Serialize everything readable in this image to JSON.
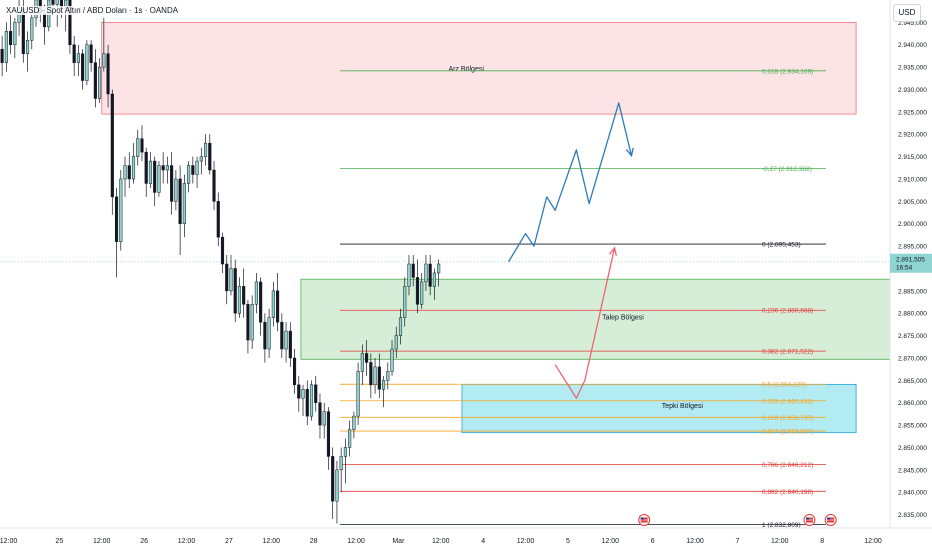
{
  "header": {
    "symbol_title": "XAUUSD · Spot Altın / ABD Doları · 1s · OANDA",
    "currency": "USD"
  },
  "colors": {
    "up": "#8fd4d0",
    "down": "#131722",
    "supply_fill": "#fbe3e6",
    "supply_border": "#f0737d",
    "demand_fill": "#d6eed8",
    "demand_border": "#4caf50",
    "reaction_fill": "#b2ebf2",
    "reaction_border": "#26a3d9",
    "arrow_blue": "#2e7ab8",
    "arrow_red": "#f0636e",
    "price_badge": "#8fd4d0"
  },
  "chart_data": {
    "type": "candlestick",
    "instrument": "XAUUSD",
    "timeframe": "1s",
    "ylim": [
      2832.0,
      2950.0
    ],
    "yticks": [
      2835.0,
      2840.0,
      2845.0,
      2850.0,
      2855.0,
      2860.0,
      2865.0,
      2870.0,
      2875.0,
      2880.0,
      2885.0,
      2890.0,
      2895.0,
      2900.0,
      2905.0,
      2910.0,
      2915.0,
      2920.0,
      2925.0,
      2930.0,
      2935.0,
      2940.0,
      2945.0
    ],
    "ytick_labels": [
      "2.835,000",
      "2.840,000",
      "2.845,000",
      "2.850,000",
      "2.855,000",
      "2.860,000",
      "2.865,000",
      "2.870,000",
      "2.875,000",
      "2.880,000",
      "2.885,000",
      "2.890,000",
      "2.895,000",
      "2.900,000",
      "2.905,000",
      "2.910,000",
      "2.915,000",
      "2.920,000",
      "2.925,000",
      "2.930,000",
      "2.935,000",
      "2.940,000",
      "2.945,000"
    ],
    "xlim": [
      0,
      210
    ],
    "xticks": [
      {
        "t": 2,
        "label": "12:00"
      },
      {
        "t": 14,
        "label": "25"
      },
      {
        "t": 24,
        "label": "12:00"
      },
      {
        "t": 34,
        "label": "26"
      },
      {
        "t": 44,
        "label": "12:00"
      },
      {
        "t": 54,
        "label": "27"
      },
      {
        "t": 64,
        "label": "12:00"
      },
      {
        "t": 74,
        "label": "28"
      },
      {
        "t": 84,
        "label": "12:00"
      },
      {
        "t": 94,
        "label": "Mar"
      },
      {
        "t": 104,
        "label": "12:00"
      },
      {
        "t": 114,
        "label": "4"
      },
      {
        "t": 124,
        "label": "12:00"
      },
      {
        "t": 134,
        "label": "5"
      },
      {
        "t": 144,
        "label": "12:00"
      },
      {
        "t": 154,
        "label": "6"
      },
      {
        "t": 164,
        "label": "12:00"
      },
      {
        "t": 174,
        "label": "7"
      },
      {
        "t": 184,
        "label": "12:00"
      },
      {
        "t": 194,
        "label": "8"
      },
      {
        "t": 206,
        "label": "12:00"
      }
    ],
    "current_price": {
      "label": "2.891,505",
      "countdown": "16:54",
      "value": 2891.505
    },
    "candles": [
      [
        2939,
        2942,
        2933,
        2936
      ],
      [
        2936,
        2945,
        2934,
        2943
      ],
      [
        2943,
        2947,
        2938,
        2940
      ],
      [
        2940,
        2946,
        2937,
        2945
      ],
      [
        2945,
        2951,
        2942,
        2948
      ],
      [
        2948,
        2950,
        2936,
        2938
      ],
      [
        2938,
        2943,
        2934,
        2941
      ],
      [
        2941,
        2948,
        2939,
        2946
      ],
      [
        2946,
        2952,
        2944,
        2950
      ],
      [
        2950,
        2953,
        2945,
        2947
      ],
      [
        2947,
        2949,
        2940,
        2944
      ],
      [
        2944,
        2951,
        2943,
        2950
      ],
      [
        2950,
        2954,
        2947,
        2949
      ],
      [
        2949,
        2953,
        2944,
        2951
      ],
      [
        2951,
        2954,
        2946,
        2948
      ],
      [
        2948,
        2952,
        2943,
        2950
      ],
      [
        2950,
        2951,
        2938,
        2940
      ],
      [
        2940,
        2942,
        2933,
        2936
      ],
      [
        2936,
        2940,
        2933,
        2938
      ],
      [
        2938,
        2939,
        2930,
        2932
      ],
      [
        2932,
        2941,
        2931,
        2940
      ],
      [
        2940,
        2941,
        2934,
        2936
      ],
      [
        2936,
        2939,
        2926,
        2928
      ],
      [
        2928,
        2937,
        2927,
        2935
      ],
      [
        2935,
        2946,
        2934,
        2938
      ],
      [
        2938,
        2940,
        2926,
        2929
      ],
      [
        2929,
        2930,
        2902,
        2906
      ],
      [
        2906,
        2908,
        2888,
        2896
      ],
      [
        2896,
        2912,
        2894,
        2910
      ],
      [
        2910,
        2915,
        2906,
        2913
      ],
      [
        2913,
        2916,
        2908,
        2910
      ],
      [
        2910,
        2918,
        2909,
        2915
      ],
      [
        2915,
        2921,
        2913,
        2919
      ],
      [
        2919,
        2922,
        2914,
        2916
      ],
      [
        2916,
        2917,
        2906,
        2909
      ],
      [
        2909,
        2916,
        2908,
        2914
      ],
      [
        2914,
        2915,
        2904,
        2907
      ],
      [
        2907,
        2914,
        2906,
        2913
      ],
      [
        2913,
        2916,
        2909,
        2912
      ],
      [
        2912,
        2915,
        2909,
        2913
      ],
      [
        2913,
        2916,
        2902,
        2905
      ],
      [
        2905,
        2912,
        2903,
        2910
      ],
      [
        2910,
        2913,
        2893,
        2900
      ],
      [
        2900,
        2911,
        2897,
        2909
      ],
      [
        2909,
        2914,
        2907,
        2913
      ],
      [
        2913,
        2915,
        2909,
        2911
      ],
      [
        2911,
        2915,
        2908,
        2914
      ],
      [
        2914,
        2917,
        2911,
        2915
      ],
      [
        2915,
        2920,
        2913,
        2918
      ],
      [
        2918,
        2920,
        2911,
        2912
      ],
      [
        2912,
        2914,
        2903,
        2905
      ],
      [
        2905,
        2907,
        2895,
        2897
      ],
      [
        2897,
        2898,
        2889,
        2891
      ],
      [
        2891,
        2893,
        2882,
        2885
      ],
      [
        2885,
        2893,
        2884,
        2890
      ],
      [
        2890,
        2892,
        2878,
        2880
      ],
      [
        2880,
        2888,
        2879,
        2886
      ],
      [
        2886,
        2890,
        2879,
        2882
      ],
      [
        2882,
        2883,
        2871,
        2874
      ],
      [
        2874,
        2884,
        2872,
        2882
      ],
      [
        2882,
        2889,
        2880,
        2887
      ],
      [
        2887,
        2888,
        2875,
        2878
      ],
      [
        2878,
        2880,
        2869,
        2872
      ],
      [
        2872,
        2881,
        2870,
        2879
      ],
      [
        2879,
        2887,
        2877,
        2885
      ],
      [
        2885,
        2889,
        2876,
        2878
      ],
      [
        2878,
        2880,
        2870,
        2872
      ],
      [
        2872,
        2878,
        2869,
        2876
      ],
      [
        2876,
        2878,
        2868,
        2870
      ],
      [
        2870,
        2872,
        2862,
        2864
      ],
      [
        2864,
        2866,
        2858,
        2861
      ],
      [
        2861,
        2864,
        2857,
        2863
      ],
      [
        2863,
        2865,
        2855,
        2857
      ],
      [
        2857,
        2865,
        2856,
        2864
      ],
      [
        2864,
        2866,
        2858,
        2860
      ],
      [
        2860,
        2862,
        2852,
        2855
      ],
      [
        2855,
        2860,
        2852,
        2858
      ],
      [
        2858,
        2859,
        2845,
        2848
      ],
      [
        2848,
        2850,
        2834,
        2838
      ],
      [
        2838,
        2847,
        2833,
        2845
      ],
      [
        2845,
        2850,
        2840,
        2848
      ],
      [
        2848,
        2852,
        2842,
        2850
      ],
      [
        2850,
        2856,
        2848,
        2854
      ],
      [
        2854,
        2858,
        2852,
        2857
      ],
      [
        2857,
        2869,
        2855,
        2867
      ],
      [
        2867,
        2873,
        2864,
        2871
      ],
      [
        2871,
        2874,
        2866,
        2869
      ],
      [
        2869,
        2871,
        2861,
        2864
      ],
      [
        2864,
        2870,
        2862,
        2868
      ],
      [
        2868,
        2871,
        2861,
        2863
      ],
      [
        2863,
        2866,
        2859,
        2865
      ],
      [
        2865,
        2869,
        2863,
        2867
      ],
      [
        2867,
        2874,
        2866,
        2872
      ],
      [
        2872,
        2877,
        2870,
        2875
      ],
      [
        2875,
        2881,
        2873,
        2879
      ],
      [
        2879,
        2888,
        2877,
        2886
      ],
      [
        2886,
        2893,
        2884,
        2891
      ],
      [
        2891,
        2893,
        2886,
        2888
      ],
      [
        2888,
        2892,
        2880,
        2882
      ],
      [
        2882,
        2889,
        2881,
        2887
      ],
      [
        2887,
        2893,
        2885,
        2891
      ],
      [
        2891,
        2893,
        2884,
        2886
      ],
      [
        2886,
        2890,
        2883,
        2889
      ],
      [
        2889,
        2892,
        2886,
        2891
      ]
    ],
    "fib_levels": [
      {
        "name": "fib-0618",
        "label": "0,618 (2.934,169)",
        "value": 2934.169,
        "color": "#4caf50"
      },
      {
        "name": "fib-027",
        "label": "-0,27 (2.912,368)",
        "value": 2912.368,
        "color": "#4caf50"
      },
      {
        "name": "fib-0",
        "label": "0 (2.895,453)",
        "value": 2895.453,
        "color": "#131722"
      },
      {
        "name": "fib-0236",
        "label": "0,236 (2.880,668)",
        "value": 2880.668,
        "color": "#e53935"
      },
      {
        "name": "fib-0382",
        "label": "0,382 (2.871,522)",
        "value": 2871.522,
        "color": "#e53935"
      },
      {
        "name": "fib-05",
        "label": "0,5 (2.864,129)",
        "value": 2864.129,
        "color": "#f5a623"
      },
      {
        "name": "fib-0559",
        "label": "0,559 (2.860,433)",
        "value": 2860.433,
        "color": "#f5a623"
      },
      {
        "name": "fib-0618b",
        "label": "0,618 (2.856,737)",
        "value": 2856.737,
        "color": "#f5a623"
      },
      {
        "name": "fib-0667",
        "label": "0,667 (2.853,667)",
        "value": 2853.667,
        "color": "#f5a623"
      },
      {
        "name": "fib-0786",
        "label": "0,786 (2.846,212)",
        "value": 2846.212,
        "color": "#e53935"
      },
      {
        "name": "fib-0882",
        "label": "0,882 (2.840,198)",
        "value": 2840.198,
        "color": "#e53935"
      },
      {
        "name": "fib-1",
        "label": "1 (2.832,809)",
        "value": 2832.809,
        "color": "#131722"
      }
    ],
    "zones": [
      {
        "name": "arz-bolgesi-zone",
        "label": "Arz Bölgesi",
        "t0": 24,
        "t1": 202,
        "y0": 2924.5,
        "y1": 2945.0,
        "label_t": 110,
        "label_y": 2934.8,
        "kind": "supply"
      },
      {
        "name": "talep-bolgesi-zone",
        "label": "Talep Bölgesi",
        "t0": 71,
        "t1": 210,
        "y0": 2869.7,
        "y1": 2887.6,
        "label_t": 147,
        "label_y": 2879.3,
        "kind": "demand"
      },
      {
        "name": "tepki-bolgesi-zone",
        "label": "Tepki Bölgesi",
        "t0": 109,
        "t1": 202,
        "y0": 2853.3,
        "y1": 2864.1,
        "label_t": 161,
        "label_y": 2859.5,
        "kind": "reaction"
      }
    ],
    "projections": [
      {
        "name": "blue-projection-arrow",
        "color": "arrow_blue",
        "points": [
          [
            120,
            2891.5
          ],
          [
            124,
            2897.8
          ],
          [
            126,
            2895.0
          ],
          [
            129,
            2906.0
          ],
          [
            131,
            2903.0
          ],
          [
            136,
            2916.5
          ],
          [
            139,
            2904.5
          ],
          [
            146,
            2927.0
          ],
          [
            149,
            2915.2
          ]
        ]
      },
      {
        "name": "red-projection-arrow",
        "color": "arrow_red",
        "points": [
          [
            131,
            2868.5
          ],
          [
            136,
            2861.0
          ],
          [
            138,
            2865.0
          ],
          [
            145,
            2894.6
          ]
        ]
      }
    ],
    "event_markers": [
      {
        "name": "flag-icon-1",
        "t": 152
      },
      {
        "name": "flag-icon-2",
        "t": 191
      },
      {
        "name": "flag-icon-3",
        "t": 196
      }
    ]
  }
}
